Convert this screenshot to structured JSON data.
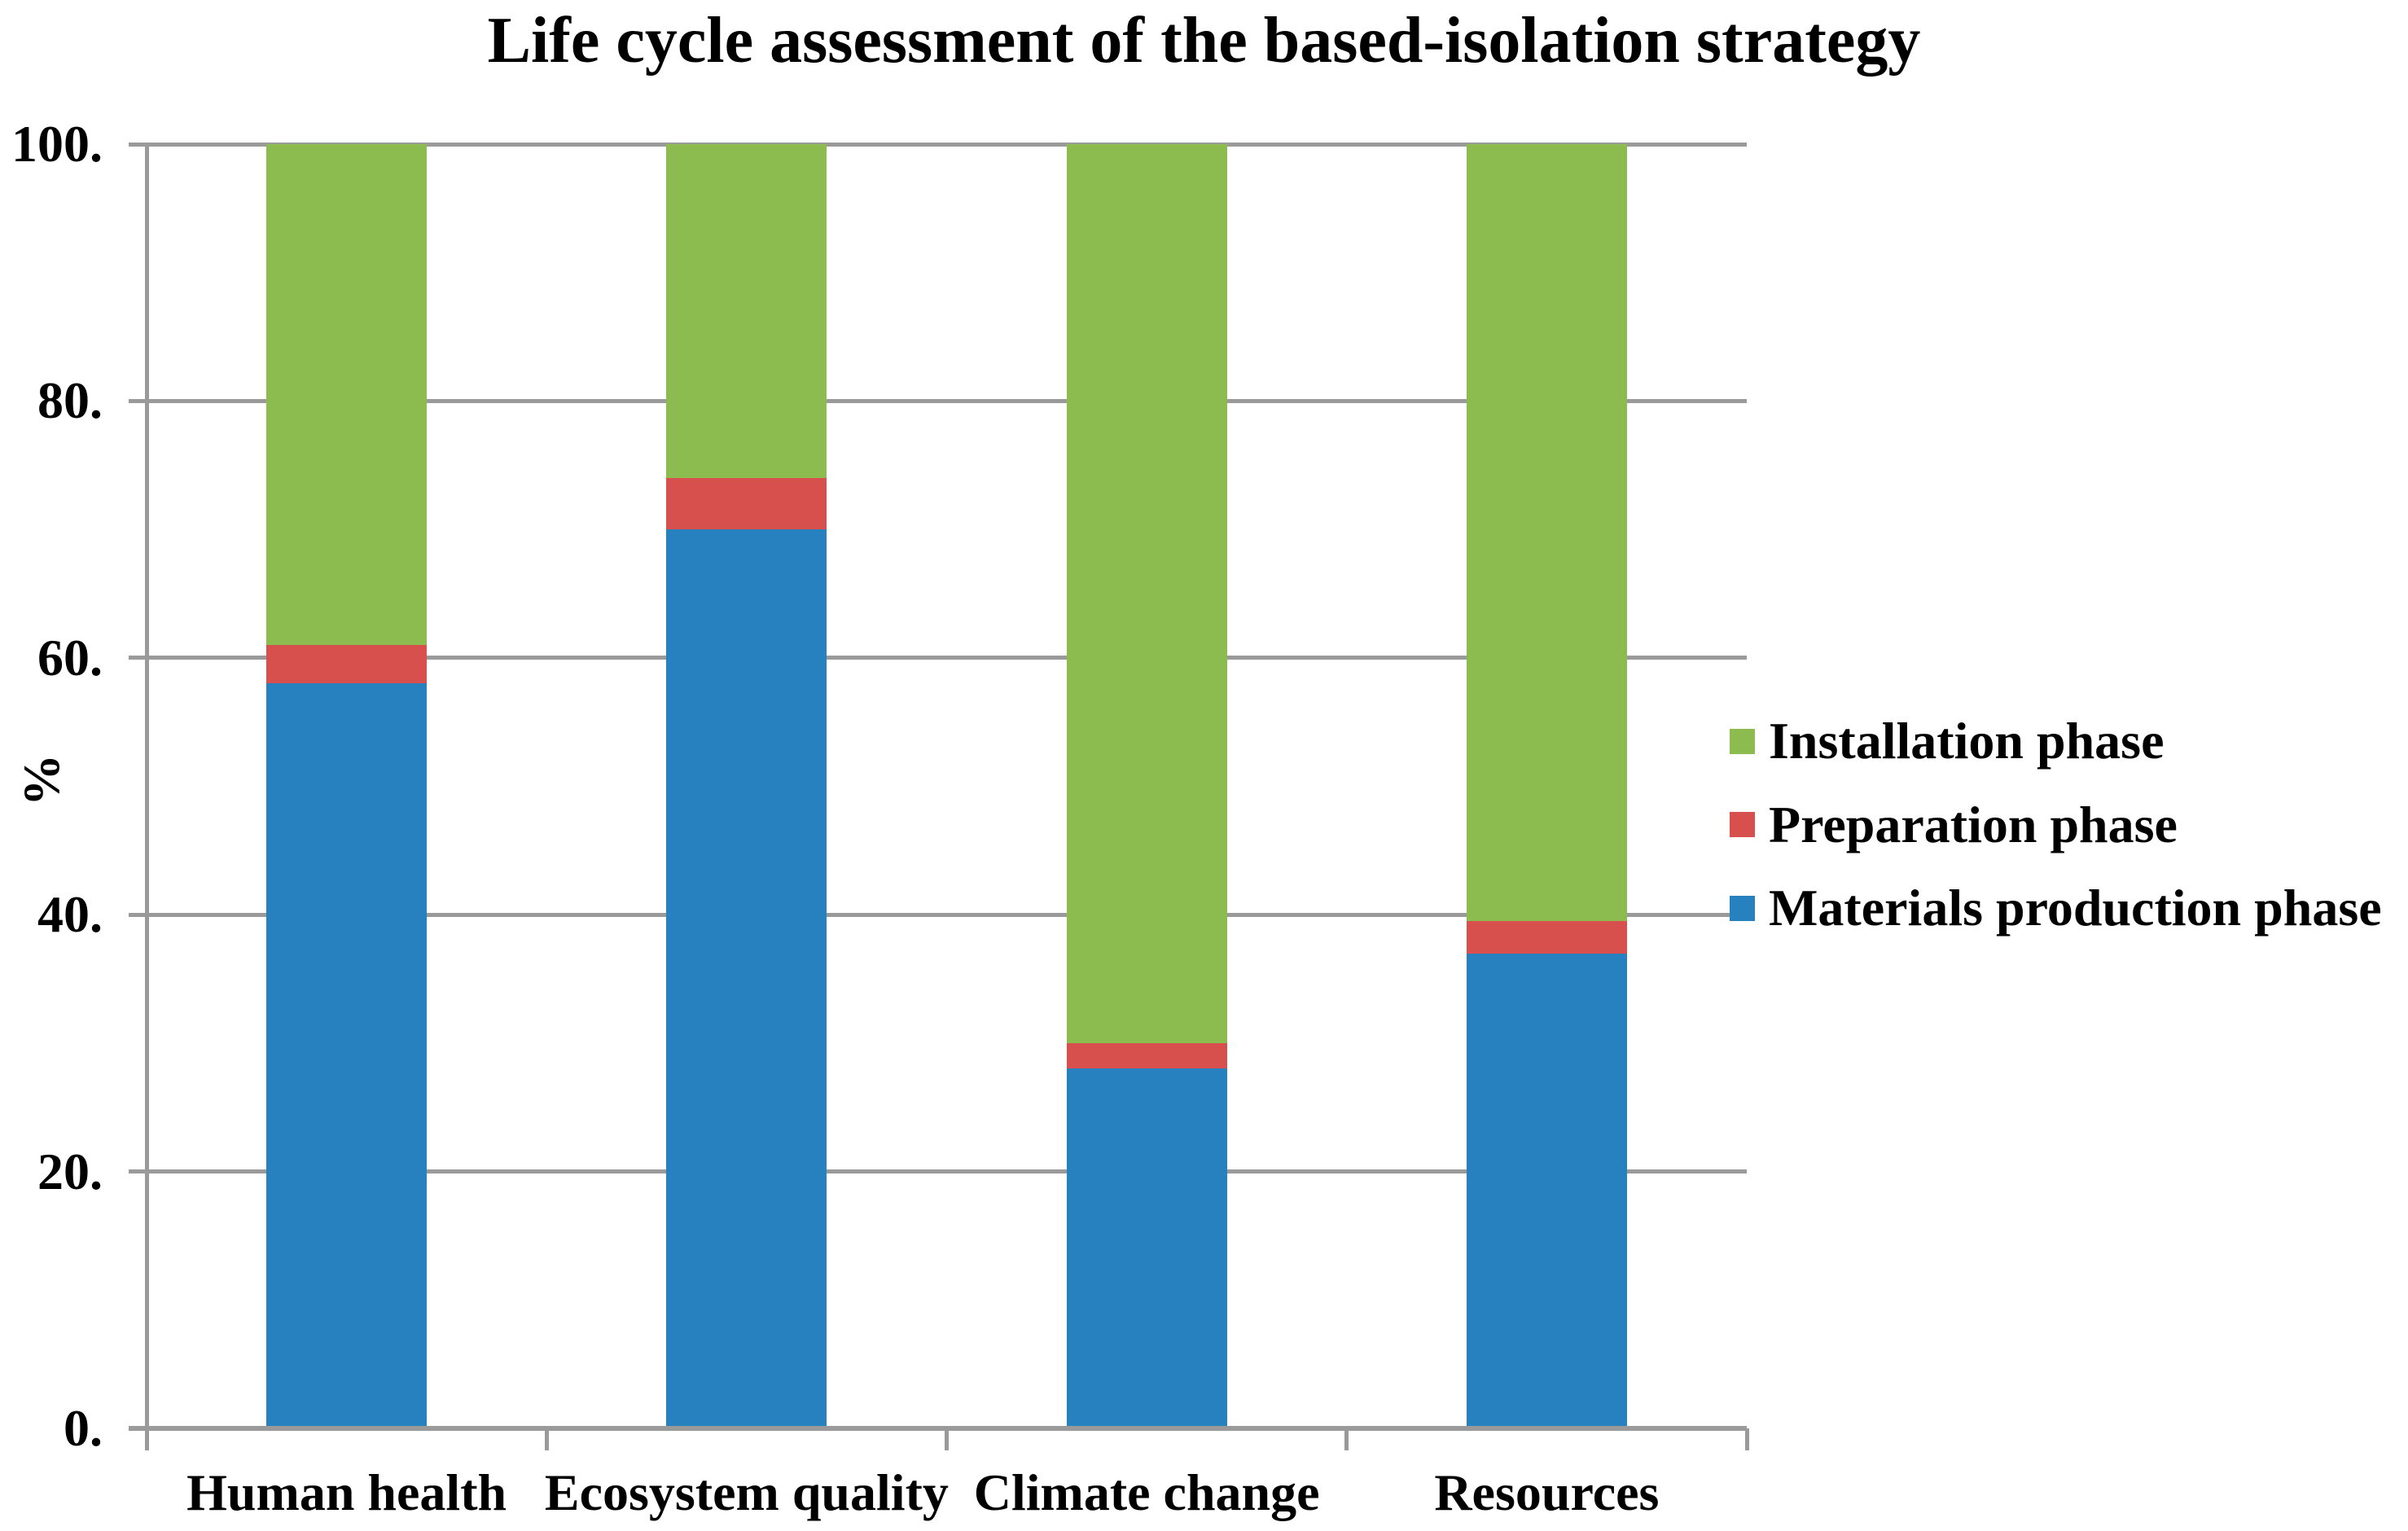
{
  "chart_data": {
    "type": "bar",
    "subtype": "stacked-percentage",
    "title": "Life cycle assessment of the based-isolation strategy",
    "xlabel": "",
    "ylabel": "%",
    "categories": [
      "Human health",
      "Ecosystem quality",
      "Climate change",
      "Resources"
    ],
    "series": [
      {
        "name": "Installation phase",
        "color": "#8CBC50",
        "values": [
          39,
          26,
          70,
          60.5
        ]
      },
      {
        "name": "Preparation phase",
        "color": "#D7504D",
        "values": [
          3,
          4,
          2,
          2.5
        ]
      },
      {
        "name": "Materials production phase",
        "color": "#2681BE",
        "values": [
          58,
          70,
          28,
          37
        ]
      }
    ],
    "stack_order_bottom_to_top": [
      "Materials production phase",
      "Preparation phase",
      "Installation phase"
    ],
    "ylim": [
      0,
      100
    ],
    "yticks": [
      0,
      20,
      40,
      60,
      80,
      100
    ],
    "ytick_labels": [
      "0.",
      "20.",
      "40.",
      "60.",
      "80.",
      "100."
    ],
    "grid": "horizontal",
    "gridline_color": "#9A9A9A",
    "axis_color": "#9A9A9A",
    "legend_position": "right"
  }
}
